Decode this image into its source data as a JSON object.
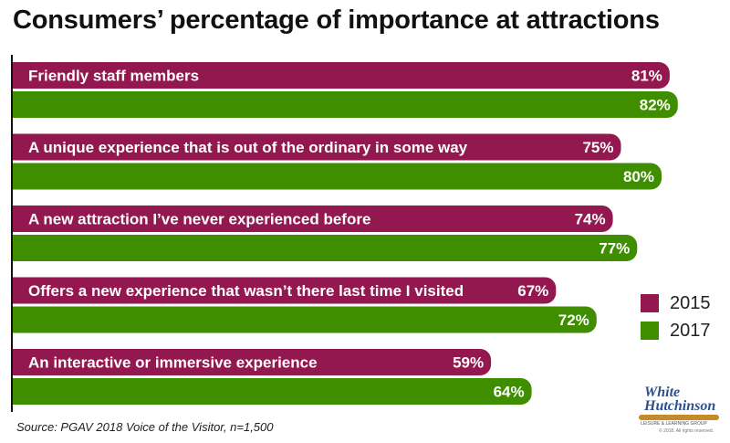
{
  "title": "Consumers’ percentage of importance at attractions",
  "source": "Source: PGAV 2018 Voice of the Visitor, n=1,500",
  "logo": {
    "line1": "White",
    "line2": "Hutchinson",
    "tagline": "LEISURE & LEARNING GROUP",
    "copyright": "© 2018. All rights reserved."
  },
  "colors": {
    "2015": "#93184f",
    "2017": "#3f8e00",
    "axis": "#111111"
  },
  "chart_data": {
    "type": "bar",
    "orientation": "horizontal",
    "categories": [
      "Friendly staff members",
      "A unique experience that is out of the ordinary in some way",
      "A new attraction I’ve never experienced before",
      "Offers a new experience that wasn’t there last time I visited",
      "An interactive or immersive experience"
    ],
    "series": [
      {
        "name": "2015",
        "values": [
          81,
          75,
          74,
          67,
          59
        ],
        "labels": [
          "81%",
          "75%",
          "74%",
          "67%",
          "59%"
        ]
      },
      {
        "name": "2017",
        "values": [
          82,
          80,
          77,
          72,
          64
        ],
        "labels": [
          "82%",
          "80%",
          "77%",
          "72%",
          "64%"
        ]
      }
    ],
    "xlim": [
      0,
      100
    ],
    "legend": "right",
    "grid": false,
    "data_labels": "inside-end"
  }
}
